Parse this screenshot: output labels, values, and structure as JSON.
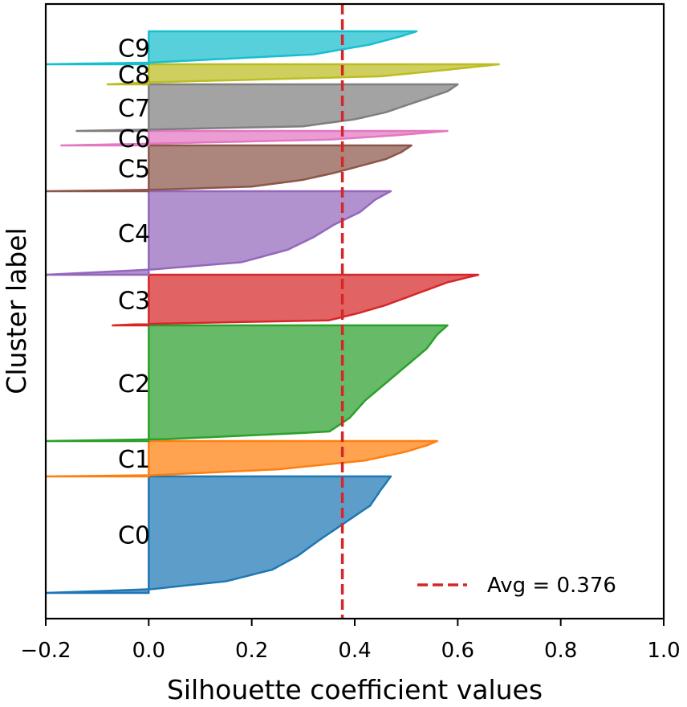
{
  "chart_data": {
    "type": "area",
    "xlabel": "Silhouette coefficient values",
    "ylabel": "Cluster label",
    "xlim": [
      -0.2,
      1.0
    ],
    "xticks": [
      -0.2,
      0.0,
      0.2,
      0.4,
      0.6,
      0.8,
      1.0
    ],
    "xtick_labels": [
      "−0.2",
      "0.0",
      "0.2",
      "0.4",
      "0.6",
      "0.8",
      "1.0"
    ],
    "yticks_shown": false,
    "grid": false,
    "legend": {
      "placement": "bottom-right",
      "entries": [
        {
          "label": "Avg = 0.376",
          "style": "dashed",
          "color": "#d62728"
        }
      ]
    },
    "average": 0.376,
    "series": [
      {
        "name": "C0",
        "color": "#1f77b4",
        "profile": [
          [
            0.0,
            -0.2
          ],
          [
            0.03,
            0.0
          ],
          [
            0.1,
            0.15
          ],
          [
            0.2,
            0.24
          ],
          [
            0.32,
            0.29
          ],
          [
            0.45,
            0.33
          ],
          [
            0.6,
            0.38
          ],
          [
            0.75,
            0.43
          ],
          [
            0.88,
            0.45
          ],
          [
            1.0,
            0.47
          ]
        ]
      },
      {
        "name": "C1",
        "color": "#ff7f0e",
        "profile": [
          [
            0.0,
            -0.2
          ],
          [
            0.03,
            0.0
          ],
          [
            0.2,
            0.25
          ],
          [
            0.45,
            0.42
          ],
          [
            0.7,
            0.5
          ],
          [
            0.88,
            0.54
          ],
          [
            1.0,
            0.56
          ]
        ]
      },
      {
        "name": "C2",
        "color": "#2ca02c",
        "profile": [
          [
            0.0,
            -0.2
          ],
          [
            0.01,
            0.0
          ],
          [
            0.08,
            0.35
          ],
          [
            0.2,
            0.39
          ],
          [
            0.35,
            0.42
          ],
          [
            0.5,
            0.46
          ],
          [
            0.65,
            0.5
          ],
          [
            0.8,
            0.54
          ],
          [
            0.92,
            0.56
          ],
          [
            1.0,
            0.58
          ]
        ]
      },
      {
        "name": "C3",
        "color": "#d62728",
        "profile": [
          [
            0.0,
            -0.07
          ],
          [
            0.03,
            0.0
          ],
          [
            0.1,
            0.35
          ],
          [
            0.25,
            0.41
          ],
          [
            0.4,
            0.46
          ],
          [
            0.55,
            0.5
          ],
          [
            0.7,
            0.54
          ],
          [
            0.85,
            0.58
          ],
          [
            1.0,
            0.64
          ]
        ]
      },
      {
        "name": "C4",
        "color": "#9467bd",
        "profile": [
          [
            0.0,
            -0.2
          ],
          [
            0.06,
            0.0
          ],
          [
            0.15,
            0.18
          ],
          [
            0.3,
            0.27
          ],
          [
            0.45,
            0.32
          ],
          [
            0.6,
            0.36
          ],
          [
            0.75,
            0.41
          ],
          [
            0.9,
            0.44
          ],
          [
            1.0,
            0.47
          ]
        ]
      },
      {
        "name": "C5",
        "color": "#8c564b",
        "profile": [
          [
            0.0,
            -0.2
          ],
          [
            0.03,
            0.0
          ],
          [
            0.1,
            0.2
          ],
          [
            0.25,
            0.3
          ],
          [
            0.4,
            0.36
          ],
          [
            0.55,
            0.41
          ],
          [
            0.7,
            0.46
          ],
          [
            0.85,
            0.49
          ],
          [
            1.0,
            0.51
          ]
        ]
      },
      {
        "name": "C6",
        "color": "#e377c2",
        "profile": [
          [
            0.0,
            -0.17
          ],
          [
            0.12,
            0.0
          ],
          [
            0.4,
            0.35
          ],
          [
            0.7,
            0.48
          ],
          [
            1.0,
            0.58
          ]
        ]
      },
      {
        "name": "C7",
        "color": "#7f7f7f",
        "profile": [
          [
            0.0,
            -0.14
          ],
          [
            0.03,
            0.0
          ],
          [
            0.1,
            0.3
          ],
          [
            0.25,
            0.4
          ],
          [
            0.4,
            0.46
          ],
          [
            0.55,
            0.5
          ],
          [
            0.7,
            0.54
          ],
          [
            0.85,
            0.58
          ],
          [
            1.0,
            0.6
          ]
        ]
      },
      {
        "name": "C8",
        "color": "#bcbd22",
        "profile": [
          [
            0.0,
            -0.08
          ],
          [
            0.1,
            0.0
          ],
          [
            0.4,
            0.45
          ],
          [
            0.7,
            0.57
          ],
          [
            1.0,
            0.68
          ]
        ]
      },
      {
        "name": "C9",
        "color": "#17becf",
        "profile": [
          [
            0.0,
            -0.2
          ],
          [
            0.05,
            0.0
          ],
          [
            0.3,
            0.32
          ],
          [
            0.6,
            0.43
          ],
          [
            0.85,
            0.49
          ],
          [
            1.0,
            0.52
          ]
        ]
      }
    ]
  }
}
